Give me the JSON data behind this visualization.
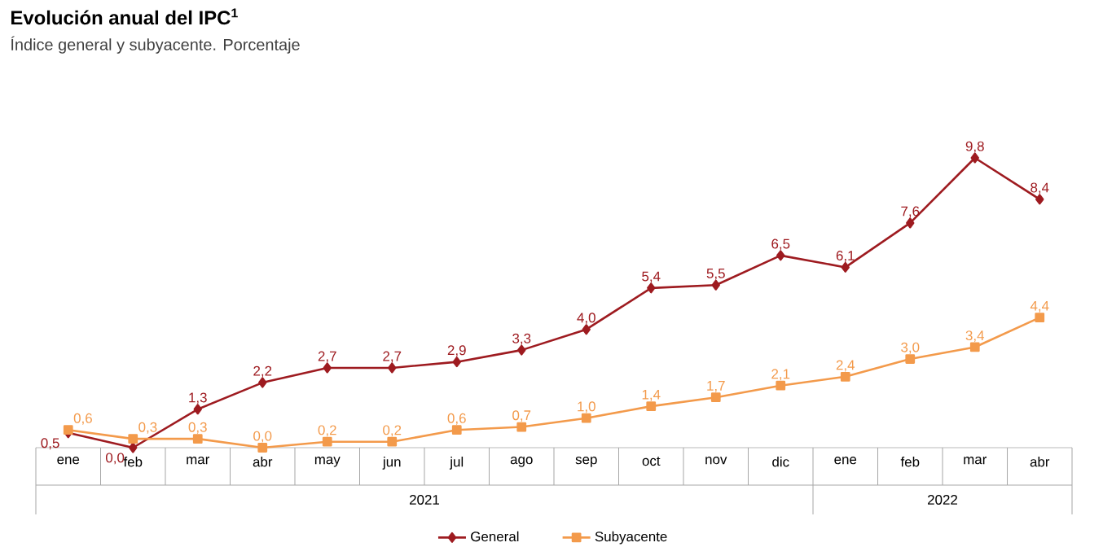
{
  "chart_data": {
    "type": "line",
    "title": "Evolución anual del IPC$^{1}$",
    "subtitle": "Índice general y subyacente. Porcentaje",
    "categories": [
      "ene",
      "feb",
      "mar",
      "abr",
      "may",
      "jun",
      "jul",
      "ago",
      "sep",
      "oct",
      "nov",
      "dic",
      "ene",
      "feb",
      "mar",
      "abr"
    ],
    "annotations": [
      "2021",
      "2022"
    ],
    "series": [
      {
        "name": "General",
        "color": "#9e1b20",
        "marker": "diamond",
        "values": [
          0.5,
          0.0,
          1.3,
          2.2,
          2.7,
          2.7,
          2.9,
          3.3,
          4.0,
          5.4,
          5.5,
          6.5,
          6.1,
          7.6,
          9.8,
          8.4
        ],
        "value_labels": [
          "0,5",
          "0,0",
          "1,3",
          "2,2",
          "2,7",
          "2,7",
          "2,9",
          "3,3",
          "4,0",
          "5,4",
          "5,5",
          "6,5",
          "6,1",
          "7,6",
          "9,8",
          "8,4"
        ]
      },
      {
        "name": "Subyacente",
        "color": "#f39a4b",
        "marker": "square",
        "values": [
          0.6,
          0.3,
          0.3,
          0.0,
          0.2,
          0.2,
          0.6,
          0.7,
          1.0,
          1.4,
          1.7,
          2.1,
          2.4,
          3.0,
          3.4,
          4.4
        ],
        "value_labels": [
          "0,6",
          "0,3",
          "0,3",
          "0,0",
          "0,2",
          "0,2",
          "0,6",
          "0,7",
          "1,0",
          "1,4",
          "1,7",
          "2,1",
          "2,4",
          "3,0",
          "3,4",
          "4,4"
        ]
      }
    ],
    "legend": "bottom",
    "grid": false
  }
}
